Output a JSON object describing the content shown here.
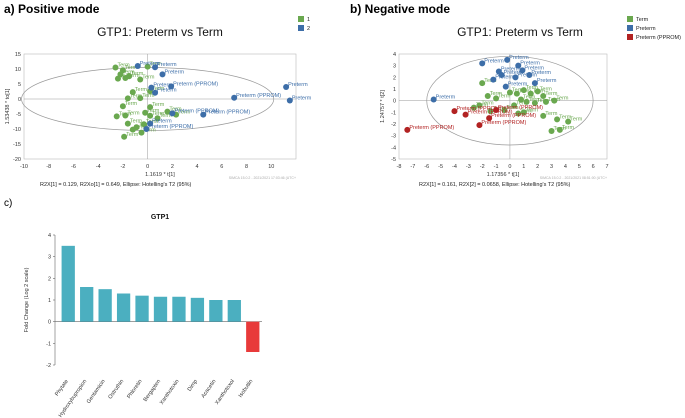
{
  "panels": {
    "a": "a) Positive mode",
    "b": "b) Negative mode",
    "c": "c)"
  },
  "chart_data": [
    {
      "type": "scatter",
      "title": "GTP1: Preterm vs Term",
      "xlabel": "1.1619 * t[1]",
      "ylabel": "1.53438 * to[1]",
      "xlim": [
        -10,
        12
      ],
      "ylim": [
        -20,
        15
      ],
      "xticks": [
        -10,
        -8,
        -6,
        -4,
        -2,
        0,
        2,
        4,
        6,
        8,
        10
      ],
      "yticks": [
        15,
        10,
        5,
        0,
        -5,
        -10,
        -15,
        -20
      ],
      "footer": "R2X[1] = 0.129, R2Xo[1] = 0.649, Ellipse: Hotelling's T2 (95%)",
      "watermark": "SIMCA 15.0.2 - 2021/2021 17:03:46 (UTC+",
      "legend": [
        {
          "name": "1",
          "color": "#6aa84f"
        },
        {
          "name": "2",
          "color": "#3d6ea8"
        }
      ],
      "ellipse": {
        "rx": 10.2,
        "ry": 10.5
      },
      "series": [
        {
          "name": "Term",
          "color": "#6aa84f",
          "points": [
            [
              -2.6,
              10.5,
              "Term"
            ],
            [
              -2.0,
              9.6,
              "Term"
            ],
            [
              -2.2,
              8.2,
              "Term"
            ],
            [
              -1.5,
              7.6,
              "Term"
            ],
            [
              -2.4,
              6.8,
              "Term"
            ],
            [
              -1.8,
              7.0,
              "Term"
            ],
            [
              -0.6,
              6.5,
              "Term"
            ],
            [
              0.0,
              10.8,
              "Term"
            ],
            [
              -1.2,
              2.3,
              "Term"
            ],
            [
              -0.6,
              0.3,
              "Term"
            ],
            [
              -1.6,
              0.2,
              "Term"
            ],
            [
              -2.0,
              -2.4,
              "Term"
            ],
            [
              -1.8,
              -5.5,
              "Term"
            ],
            [
              -1.6,
              -8.2,
              "Term"
            ],
            [
              -0.9,
              -9.4,
              "Term"
            ],
            [
              -1.2,
              -10.2,
              "Term"
            ],
            [
              -0.5,
              -11.2,
              "Term"
            ],
            [
              0.2,
              -2.7,
              "Term"
            ],
            [
              -0.2,
              -4.6,
              "Term"
            ],
            [
              0.2,
              -5.6,
              "Term"
            ],
            [
              0.8,
              -6.4,
              "Term"
            ],
            [
              1.6,
              -4.2,
              "Term"
            ],
            [
              2.3,
              -5.2,
              "Term"
            ],
            [
              0.2,
              2.6,
              "Term"
            ],
            [
              -0.3,
              -8.4,
              "Term"
            ],
            [
              -1.9,
              -12.6,
              "Term"
            ],
            [
              -2.5,
              -5.8,
              "Term"
            ]
          ]
        },
        {
          "name": "Preterm",
          "color": "#3d6ea8",
          "points": [
            [
              -0.8,
              11.0,
              "Preterm"
            ],
            [
              0.6,
              10.6,
              "Preterm"
            ],
            [
              1.2,
              8.2,
              "Preterm"
            ],
            [
              0.3,
              3.8,
              "Preterm"
            ],
            [
              1.9,
              4.2,
              "Preterm (PPROM)"
            ],
            [
              0.6,
              2.1,
              "Preterm"
            ],
            [
              7.0,
              0.4,
              "Preterm (PPROM)"
            ],
            [
              11.2,
              4.0,
              "Preterm"
            ],
            [
              11.5,
              -0.5,
              "Preterm"
            ],
            [
              4.5,
              -5.2,
              "Preterm (PPROM)"
            ],
            [
              2.0,
              -4.8,
              "Preterm (PPROM)"
            ],
            [
              0.2,
              -8.2,
              "Preterm"
            ],
            [
              -0.1,
              -10.0,
              "Preterm (PPROM)"
            ]
          ]
        }
      ]
    },
    {
      "type": "scatter",
      "title": "GTP1: Preterm vs Term",
      "xlabel": "1.17356 * t[1]",
      "ylabel": "1.24757 * t[2]",
      "xlim": [
        -8,
        7
      ],
      "ylim": [
        -5,
        4
      ],
      "xticks": [
        -8,
        -7,
        -6,
        -5,
        -4,
        -3,
        -2,
        -1,
        0,
        1,
        2,
        3,
        4,
        5,
        6,
        7
      ],
      "yticks": [
        4,
        3,
        2,
        1,
        0,
        -1,
        -2,
        -3,
        -4,
        -5
      ],
      "footer": "R2X[1] = 0.161, R2X[2] = 0.0658, Ellipse: Hotelling's T2 (95%)",
      "watermark": "SIMCA 15.0.2 - 2021/2021 08:51:00 (UTC+",
      "legend": [
        {
          "name": "Term",
          "color": "#6aa84f"
        },
        {
          "name": "Preterm",
          "color": "#3d6ea8"
        },
        {
          "name": "Preterm (PPROM)",
          "color": "#b22222"
        }
      ],
      "ellipse": {
        "rx": 6.0,
        "ry": 3.8
      },
      "series": [
        {
          "name": "Term",
          "color": "#6aa84f",
          "points": [
            [
              -2.0,
              1.5,
              "Term"
            ],
            [
              -1.6,
              0.4,
              "Term"
            ],
            [
              -1.0,
              0.2,
              "Term"
            ],
            [
              -2.6,
              -0.6,
              "Term"
            ],
            [
              -2.2,
              -0.4,
              "Term"
            ],
            [
              -1.4,
              -0.9,
              "Term"
            ],
            [
              0.0,
              0.7,
              "Term"
            ],
            [
              0.5,
              0.6,
              "Term"
            ],
            [
              1.0,
              0.9,
              "Term"
            ],
            [
              1.5,
              0.6,
              "Term"
            ],
            [
              2.0,
              0.8,
              "Term"
            ],
            [
              2.4,
              0.4,
              "Term"
            ],
            [
              0.8,
              0.1,
              "Term"
            ],
            [
              1.2,
              -0.1,
              "Term"
            ],
            [
              1.8,
              -0.2,
              "Term"
            ],
            [
              0.3,
              -0.4,
              "Term"
            ],
            [
              -0.4,
              -0.8,
              "Term"
            ],
            [
              0.6,
              -1.1,
              "Term"
            ],
            [
              2.6,
              -0.1,
              "Term"
            ],
            [
              2.4,
              -1.3,
              "Term"
            ],
            [
              3.4,
              -1.6,
              "Term"
            ],
            [
              4.2,
              -1.8,
              "Term"
            ],
            [
              3.0,
              -2.6,
              "Term"
            ],
            [
              3.6,
              -2.5,
              "Term"
            ],
            [
              1.0,
              -1.0,
              "Term"
            ],
            [
              3.2,
              0.0,
              "Term"
            ]
          ]
        },
        {
          "name": "Preterm",
          "color": "#3d6ea8",
          "points": [
            [
              -5.5,
              0.1,
              "Preterm"
            ],
            [
              -2.0,
              3.2,
              "Preterm"
            ],
            [
              -0.2,
              3.5,
              "Preterm"
            ],
            [
              0.6,
              3.0,
              "Preterm"
            ],
            [
              -0.8,
              2.5,
              "Preterm"
            ],
            [
              0.9,
              2.6,
              "Preterm"
            ],
            [
              -0.6,
              2.2,
              "Preterm"
            ],
            [
              -1.2,
              1.8,
              "Preterm"
            ],
            [
              0.4,
              2.0,
              "Preterm"
            ],
            [
              1.4,
              2.2,
              "Preterm"
            ],
            [
              -0.3,
              1.2,
              "Preterm"
            ],
            [
              1.8,
              1.5,
              "Preterm"
            ]
          ]
        },
        {
          "name": "Preterm (PPROM)",
          "color": "#b22222",
          "points": [
            [
              -7.4,
              -2.5,
              "Preterm (PPROM)"
            ],
            [
              -4.0,
              -0.9,
              "Preterm (PPROM)"
            ],
            [
              -3.2,
              -1.2,
              "Preterm (PPROM)"
            ],
            [
              -2.2,
              -2.1,
              "Preterm (PPROM)"
            ],
            [
              -1.5,
              -1.5,
              "Preterm (PPROM)"
            ],
            [
              -1.0,
              -0.8,
              "Preterm (PPROM)"
            ]
          ]
        }
      ]
    },
    {
      "type": "bar",
      "title": "GTP1",
      "ylabel": "Fold Change (Log 2 scale)",
      "xlabel": "",
      "categories": [
        "Phytate",
        "Hydroxybupropion",
        "Gentamicin",
        "Ostruthin",
        "Phloretin",
        "Bergapten",
        "Xanthotoxin",
        "Dimp",
        "Acacetin",
        "Xanthotoxol",
        "Isobutlin"
      ],
      "values": [
        3.5,
        1.6,
        1.5,
        1.3,
        1.2,
        1.15,
        1.15,
        1.1,
        1.0,
        1.0,
        -1.4
      ],
      "colors": [
        "#4bafc0",
        "#4bafc0",
        "#4bafc0",
        "#4bafc0",
        "#4bafc0",
        "#4bafc0",
        "#4bafc0",
        "#4bafc0",
        "#4bafc0",
        "#4bafc0",
        "#e83a3a"
      ],
      "ylim": [
        -2,
        4
      ],
      "yticks": [
        -2,
        -1,
        0,
        1,
        2,
        3,
        4
      ]
    }
  ]
}
